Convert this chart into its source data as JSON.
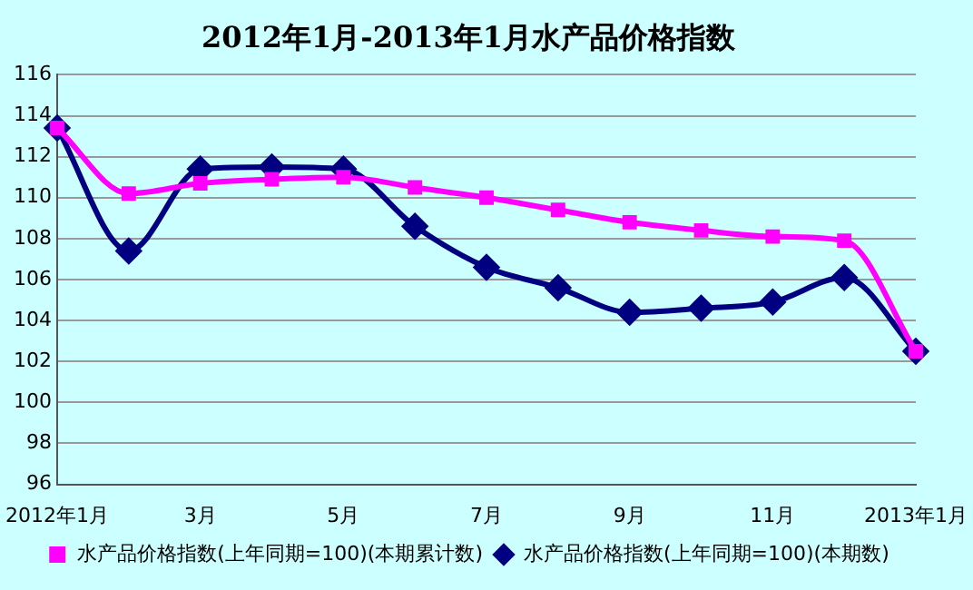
{
  "chart_data": {
    "type": "line",
    "title": "2012年1月-2013年1月水产品价格指数",
    "categories": [
      "2012年1月",
      null,
      "3月",
      null,
      "5月",
      null,
      "7月",
      null,
      "9月",
      null,
      "11月",
      null,
      "2013年1月"
    ],
    "series": [
      {
        "name": "水产品价格指数(上年同期=100)(本期数)",
        "color": "#000080",
        "marker": "diamond",
        "values": [
          113.4,
          107.4,
          111.4,
          111.5,
          111.4,
          108.6,
          106.6,
          105.6,
          104.4,
          104.6,
          104.9,
          106.1,
          102.5
        ]
      },
      {
        "name": "水产品价格指数(上年同期=100)(本期累计数)",
        "color": "#ff00ff",
        "marker": "square",
        "values": [
          113.4,
          110.2,
          110.7,
          110.9,
          111.0,
          110.5,
          110.0,
          109.4,
          108.8,
          108.4,
          108.1,
          107.9,
          102.5
        ]
      }
    ],
    "ylim": [
      96,
      116
    ],
    "yticks": [
      96,
      98,
      100,
      102,
      104,
      106,
      108,
      110,
      112,
      114,
      116
    ],
    "grid": "y",
    "legend": "bottom"
  }
}
